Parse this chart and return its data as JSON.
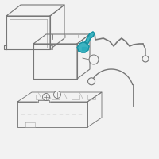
{
  "bg_color": "#f2f2f2",
  "highlight_color": "#2aacbc",
  "line_color": "#aaaaaa",
  "dark_line": "#777777",
  "mid_line": "#999999"
}
